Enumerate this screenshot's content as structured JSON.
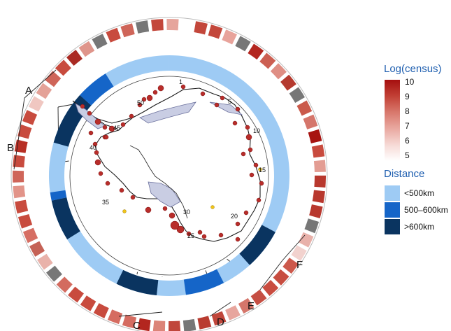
{
  "figure": {
    "sector_labels": [
      "A",
      "B",
      "C",
      "D",
      "E",
      "F"
    ],
    "site_labels": [
      "1",
      "5",
      "10",
      "15",
      "20",
      "25",
      "30",
      "35",
      "40",
      "45",
      "50"
    ],
    "census_colors": [
      "#c3473b",
      "#c3473b",
      "#e8a39b",
      "#777777",
      "#b3261f",
      "#cc5f52",
      "#df8e84",
      "#b53a2f",
      "#777777",
      "#ca5a4b",
      "#d5766b",
      "#a71411",
      "#c84b3e",
      "#e39d93",
      "#b8382e",
      "#b8382e",
      "#b8382e",
      "#777777",
      "#e8b1aa",
      "#f2d2ce",
      "#cc594c",
      "#c74d40",
      "#c94c40",
      "#c64f43",
      "#d5766b",
      "#e7a59d",
      "#c0463b",
      "#b93b30",
      "#777777",
      "#c0463b",
      "#dc8478",
      "#b3261f",
      "#d56c61",
      "#d56c61",
      "#c84b3e",
      "#c84b3e",
      "#c84b3e",
      "#d36b5f",
      "#777777",
      "#e9b2aa",
      "#c56256",
      "#d66e63",
      "#c84b3e",
      "#c84b3e",
      "#e29489",
      "#cf6559",
      "#c84b3e",
      "#b72f25",
      "#c84b3e",
      "#c84b3e",
      "#f0c7c1",
      "#e4a298",
      "#cf6559",
      "#c84b3e",
      "#aa2a23",
      "#df958b",
      "#777777",
      "#c84b3e",
      "#cf6559",
      "#777777",
      "#c3473b",
      "#e6a59c"
    ],
    "distance_colors": {
      "near": "#9ecbf4",
      "mid": "#1565c8",
      "far": "#0a3460"
    }
  },
  "legend": {
    "census_title": "Log(census)",
    "census_ticks": [
      "10",
      "9",
      "8",
      "7",
      "6",
      "5"
    ],
    "census_gradient": [
      "#a50f0f",
      "#c24035",
      "#d8786c",
      "#e9a8a0",
      "#f6d9d5",
      "#ffffff"
    ],
    "distance_title": "Distance",
    "distance_items": [
      {
        "label": "<500km",
        "color": "#9ecbf4"
      },
      {
        "label": "500–600km",
        "color": "#1565c8"
      },
      {
        "label": ">600km",
        "color": "#0a3460"
      }
    ]
  }
}
